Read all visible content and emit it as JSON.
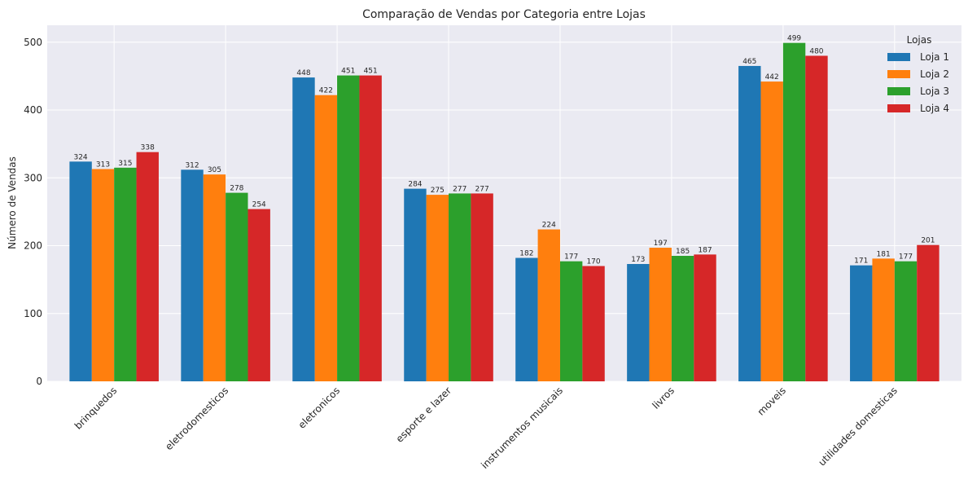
{
  "chart_data": {
    "type": "bar",
    "title": "Comparação de Vendas por Categoria entre Lojas",
    "xlabel": "",
    "ylabel": "Número de Vendas",
    "ylim": [
      0,
      525
    ],
    "yticks": [
      0,
      100,
      200,
      300,
      400,
      500
    ],
    "grid": true,
    "legend": {
      "title": "Lojas",
      "placement": "top-right"
    },
    "categories": [
      "brinquedos",
      "eletrodomesticos",
      "eletronicos",
      "esporte e lazer",
      "instrumentos musicais",
      "livros",
      "moveis",
      "utilidades domesticas"
    ],
    "series": [
      {
        "name": "Loja 1",
        "color": "#1f77b4",
        "values": [
          324,
          312,
          448,
          284,
          182,
          173,
          465,
          171
        ]
      },
      {
        "name": "Loja 2",
        "color": "#ff7f0e",
        "values": [
          313,
          305,
          422,
          275,
          224,
          197,
          442,
          181
        ]
      },
      {
        "name": "Loja 3",
        "color": "#2ca02c",
        "values": [
          315,
          278,
          451,
          277,
          177,
          185,
          499,
          177
        ]
      },
      {
        "name": "Loja 4",
        "color": "#d62728",
        "values": [
          338,
          254,
          451,
          277,
          170,
          187,
          480,
          201
        ]
      }
    ],
    "colors": {
      "plot_background": "#eaeaf2",
      "grid": "#ffffff"
    }
  }
}
